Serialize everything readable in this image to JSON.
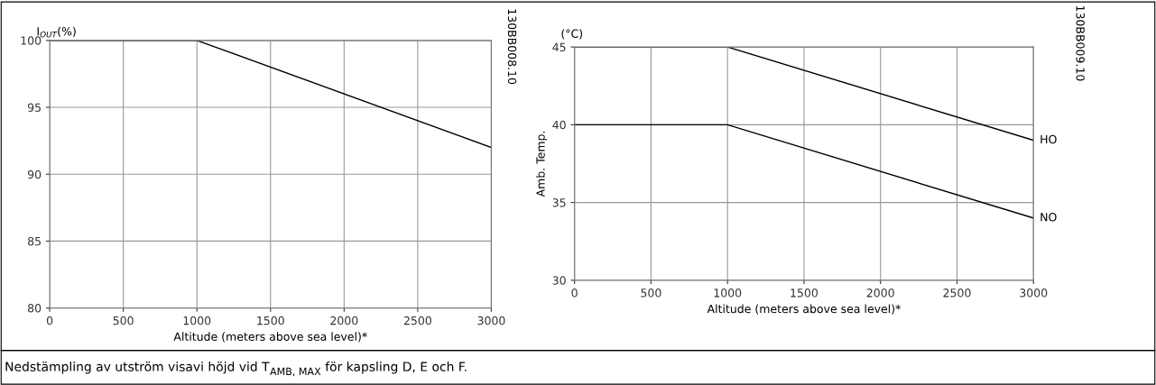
{
  "chart_data": [
    {
      "type": "line",
      "ylabel": "I$_{OUT}$(%)",
      "xlabel": "Altitude (meters above sea level)*",
      "x": [
        0,
        1000,
        3000
      ],
      "series": [
        {
          "color": "#000000",
          "values": [
            100,
            100,
            92
          ]
        }
      ],
      "xlim": [
        0,
        3000
      ],
      "xticks": [
        0,
        500,
        1000,
        1500,
        2000,
        2500,
        3000
      ],
      "ylim": [
        80,
        100
      ],
      "yticks": [
        80,
        85,
        90,
        95,
        100
      ],
      "grid": true,
      "legend": false,
      "annotations": [
        "130BB008.10",
        "Nedstämpling av utström visavi höjd vid T$_{AMB, MAX}$ för kapsling D, E och F."
      ]
    },
    {
      "type": "line",
      "ylabel": "Amb. Temp.",
      "xlabel": "Altitude (meters above sea level)*",
      "x": [
        0,
        1000,
        3000
      ],
      "series": [
        {
          "name": "HO",
          "color": "#000000",
          "values": [
            45,
            45,
            39
          ]
        },
        {
          "name": "NO",
          "color": "#000000",
          "values": [
            40,
            40,
            34
          ]
        }
      ],
      "xlim": [
        0,
        3000
      ],
      "xticks": [
        0,
        500,
        1000,
        1500,
        2000,
        2500,
        3000
      ],
      "ylim": [
        30,
        45
      ],
      "yticks": [
        30,
        35,
        40,
        45
      ],
      "grid": true,
      "legend": false,
      "annotations": [
        "(°C)",
        "130BB009.10"
      ]
    }
  ]
}
